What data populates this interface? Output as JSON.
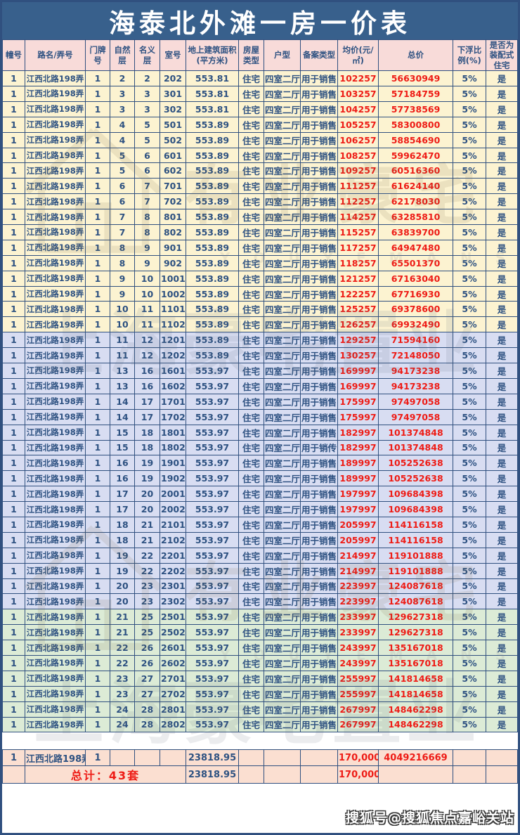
{
  "page": {
    "title": "海泰北外滩一房一价表"
  },
  "colors": {
    "title_bg": "#38608C",
    "border": "#30507F",
    "header_bg": "#F8DBD9",
    "band_yellow": "#FCF3D1",
    "band_blue": "#D8DDF2",
    "band_green": "#DCEBD6",
    "summary_bg": "#FBDFD1",
    "text_navy": "#2D5181",
    "text_red": "#EE1C16"
  },
  "table": {
    "columns": [
      "幢号",
      "路名/弄号",
      "门牌号",
      "自然层",
      "名义层",
      "室号",
      "地上建筑面积(平方米)",
      "房屋类型",
      "户型",
      "备案类型",
      "均价(元/㎡)",
      "总价",
      "下浮比例(%)",
      "是否为装配式住宅"
    ],
    "column_keys": [
      "building",
      "road",
      "door",
      "natural-floor",
      "nominal-floor",
      "room",
      "area",
      "house-type",
      "unit-layout",
      "filing-type",
      "unit-price",
      "total-price",
      "discount",
      "prefab"
    ],
    "bands": {
      "yellow": [
        1,
        17
      ],
      "blue": [
        18,
        35
      ],
      "green": [
        36,
        43
      ]
    },
    "rows": [
      [
        "1",
        "江西北路198弄",
        "1",
        "2",
        "2",
        "202",
        "553.81",
        "住宅",
        "四室二厅",
        "用于销售",
        "102257",
        "56630949",
        "5%",
        "是"
      ],
      [
        "1",
        "江西北路198弄",
        "1",
        "3",
        "3",
        "301",
        "553.81",
        "住宅",
        "四室二厅",
        "用于销售",
        "103257",
        "57184759",
        "5%",
        "是"
      ],
      [
        "1",
        "江西北路198弄",
        "1",
        "3",
        "3",
        "302",
        "553.81",
        "住宅",
        "四室二厅",
        "用于销售",
        "104257",
        "57738569",
        "5%",
        "是"
      ],
      [
        "1",
        "江西北路198弄",
        "1",
        "4",
        "5",
        "501",
        "553.89",
        "住宅",
        "四室二厅",
        "用于销售",
        "105257",
        "58300800",
        "5%",
        "是"
      ],
      [
        "1",
        "江西北路198弄",
        "1",
        "4",
        "5",
        "502",
        "553.89",
        "住宅",
        "四室二厅",
        "用于销售",
        "106257",
        "58854690",
        "5%",
        "是"
      ],
      [
        "1",
        "江西北路198弄",
        "1",
        "5",
        "6",
        "601",
        "553.89",
        "住宅",
        "四室二厅",
        "用于销售",
        "108257",
        "59962470",
        "5%",
        "是"
      ],
      [
        "1",
        "江西北路198弄",
        "1",
        "5",
        "6",
        "602",
        "553.89",
        "住宅",
        "四室二厅",
        "用于销售",
        "109257",
        "60516360",
        "5%",
        "是"
      ],
      [
        "1",
        "江西北路198弄",
        "1",
        "6",
        "7",
        "701",
        "553.89",
        "住宅",
        "四室二厅",
        "用于销售",
        "111257",
        "61624140",
        "5%",
        "是"
      ],
      [
        "1",
        "江西北路198弄",
        "1",
        "6",
        "7",
        "702",
        "553.89",
        "住宅",
        "四室二厅",
        "用于销售",
        "112257",
        "62178030",
        "5%",
        "是"
      ],
      [
        "1",
        "江西北路198弄",
        "1",
        "7",
        "8",
        "801",
        "553.89",
        "住宅",
        "四室二厅",
        "用于销售",
        "114257",
        "63285810",
        "5%",
        "是"
      ],
      [
        "1",
        "江西北路198弄",
        "1",
        "7",
        "8",
        "802",
        "553.89",
        "住宅",
        "四室二厅",
        "用于销售",
        "115257",
        "63839700",
        "5%",
        "是"
      ],
      [
        "1",
        "江西北路198弄",
        "1",
        "8",
        "9",
        "901",
        "553.89",
        "住宅",
        "四室二厅",
        "用于销售",
        "117257",
        "64947480",
        "5%",
        "是"
      ],
      [
        "1",
        "江西北路198弄",
        "1",
        "8",
        "9",
        "902",
        "553.89",
        "住宅",
        "四室二厅",
        "用于销售",
        "118257",
        "65501370",
        "5%",
        "是"
      ],
      [
        "1",
        "江西北路198弄",
        "1",
        "9",
        "10",
        "1001",
        "553.89",
        "住宅",
        "四室二厅",
        "用于销售",
        "121257",
        "67163040",
        "5%",
        "是"
      ],
      [
        "1",
        "江西北路198弄",
        "1",
        "9",
        "10",
        "1002",
        "553.89",
        "住宅",
        "四室二厅",
        "用于销售",
        "122257",
        "67716930",
        "5%",
        "是"
      ],
      [
        "1",
        "江西北路198弄",
        "1",
        "10",
        "11",
        "1101",
        "553.89",
        "住宅",
        "四室二厅",
        "用于销售",
        "125257",
        "69378600",
        "5%",
        "是"
      ],
      [
        "1",
        "江西北路198弄",
        "1",
        "10",
        "11",
        "1102",
        "553.89",
        "住宅",
        "四室二厅",
        "用于销售",
        "126257",
        "69932490",
        "5%",
        "是"
      ],
      [
        "1",
        "江西北路198弄",
        "1",
        "11",
        "12",
        "1201",
        "553.89",
        "住宅",
        "四室二厅",
        "用于销售",
        "129257",
        "71594160",
        "5%",
        "是"
      ],
      [
        "1",
        "江西北路198弄",
        "1",
        "11",
        "12",
        "1202",
        "553.89",
        "住宅",
        "四室二厅",
        "用于销售",
        "130257",
        "72148050",
        "5%",
        "是"
      ],
      [
        "1",
        "江西北路198弄",
        "1",
        "13",
        "16",
        "1601",
        "553.97",
        "住宅",
        "四室二厅",
        "用于销售",
        "169997",
        "94173238",
        "5%",
        "是"
      ],
      [
        "1",
        "江西北路198弄",
        "1",
        "13",
        "16",
        "1602",
        "553.97",
        "住宅",
        "四室二厅",
        "用于销售",
        "169997",
        "94173238",
        "5%",
        "是"
      ],
      [
        "1",
        "江西北路198弄",
        "1",
        "14",
        "17",
        "1701",
        "553.97",
        "住宅",
        "四室二厅",
        "用于销售",
        "175997",
        "97497058",
        "5%",
        "是"
      ],
      [
        "1",
        "江西北路198弄",
        "1",
        "14",
        "17",
        "1702",
        "553.97",
        "住宅",
        "四室二厅",
        "用于销售",
        "175997",
        "97497058",
        "5%",
        "是"
      ],
      [
        "1",
        "江西北路198弄",
        "1",
        "15",
        "18",
        "1801",
        "553.97",
        "住宅",
        "四室二厅",
        "用于销售",
        "182997",
        "101374848",
        "5%",
        "是"
      ],
      [
        "1",
        "江西北路198弄",
        "1",
        "15",
        "18",
        "1802",
        "553.97",
        "住宅",
        "四室二厅",
        "用于销传",
        "182997",
        "101374848",
        "5%",
        "是"
      ],
      [
        "1",
        "江西北路198弄",
        "1",
        "16",
        "19",
        "1901",
        "553.97",
        "住宅",
        "四室二厅",
        "用于销售",
        "189997",
        "105252638",
        "5%",
        "是"
      ],
      [
        "1",
        "江西北路198弄",
        "1",
        "16",
        "19",
        "1902",
        "553.97",
        "住宅",
        "四室二厅",
        "用于销售",
        "189997",
        "105252638",
        "5%",
        "是"
      ],
      [
        "1",
        "江西北路198弄",
        "1",
        "17",
        "20",
        "2001",
        "553.97",
        "住宅",
        "四室二厅",
        "用于销售",
        "197997",
        "109684398",
        "5%",
        "是"
      ],
      [
        "1",
        "江西北路198弄",
        "1",
        "17",
        "20",
        "2002",
        "553.97",
        "住宅",
        "四室二厅",
        "用于销售",
        "197997",
        "109684398",
        "5%",
        "是"
      ],
      [
        "1",
        "江西北路198弄",
        "1",
        "18",
        "21",
        "2101",
        "553.97",
        "住宅",
        "四室二厅",
        "用于销售",
        "205997",
        "114116158",
        "5%",
        "是"
      ],
      [
        "1",
        "江西北路198弄",
        "1",
        "18",
        "21",
        "2102",
        "553.97",
        "住宅",
        "四室二厅",
        "用于销售",
        "205997",
        "114116158",
        "5%",
        "是"
      ],
      [
        "1",
        "江西北路198弄",
        "1",
        "19",
        "22",
        "2201",
        "553.97",
        "住宅",
        "四室二厅",
        "用于销售",
        "214997",
        "119101888",
        "5%",
        "是"
      ],
      [
        "1",
        "江西北路198弄",
        "1",
        "19",
        "22",
        "2202",
        "553.97",
        "住宅",
        "四室二厅",
        "用于销售",
        "214997",
        "119101888",
        "5%",
        "是"
      ],
      [
        "1",
        "江西北路198弄",
        "1",
        "20",
        "23",
        "2301",
        "553.97",
        "住宅",
        "四室二厅",
        "用于销售",
        "223997",
        "124087618",
        "5%",
        "是"
      ],
      [
        "1",
        "江西北路198弄",
        "1",
        "20",
        "23",
        "2302",
        "553.97",
        "住宅",
        "四室二厅",
        "用于销售",
        "223997",
        "124087618",
        "5%",
        "是"
      ],
      [
        "1",
        "江西北路198弄",
        "1",
        "21",
        "25",
        "2501",
        "553.97",
        "住宅",
        "四室二厅",
        "用于销售",
        "233997",
        "129627318",
        "5%",
        "是"
      ],
      [
        "1",
        "江西北路198弄",
        "1",
        "21",
        "25",
        "2502",
        "553.97",
        "住宅",
        "四室二厅",
        "用于销售",
        "233997",
        "129627318",
        "5%",
        "是"
      ],
      [
        "1",
        "江西北路198弄",
        "1",
        "22",
        "26",
        "2601",
        "553.97",
        "住宅",
        "四室二厅",
        "用于销售",
        "243997",
        "135167018",
        "5%",
        "是"
      ],
      [
        "1",
        "江西北路198弄",
        "1",
        "22",
        "26",
        "2602",
        "553.97",
        "住宅",
        "四室二厅",
        "用于销售",
        "243997",
        "135167018",
        "5%",
        "是"
      ],
      [
        "1",
        "江西北路198弄",
        "1",
        "23",
        "27",
        "2701",
        "553.97",
        "住宅",
        "四室二厅",
        "用于销售",
        "255997",
        "141814658",
        "5%",
        "是"
      ],
      [
        "1",
        "江西北路198弄",
        "1",
        "23",
        "27",
        "2702",
        "553.97",
        "住宅",
        "四室二厅",
        "用于销售",
        "255997",
        "141814658",
        "5%",
        "是"
      ],
      [
        "1",
        "江西北路198弄",
        "1",
        "24",
        "28",
        "2801",
        "553.97",
        "住宅",
        "四室二厅",
        "用于销售",
        "267997",
        "148462298",
        "5%",
        "是"
      ],
      [
        "1",
        "江西北路198弄",
        "1",
        "24",
        "28",
        "2802",
        "553.97",
        "住宅",
        "四室二厅",
        "用于销售",
        "267997",
        "148462298",
        "5%",
        "是"
      ]
    ],
    "subtotal_row": {
      "building": "1",
      "road": "江西北路198弄",
      "door": "1",
      "area": "23818.95",
      "unit_price": "170,000",
      "total_price": "4049216669"
    },
    "total_row": {
      "label": "总计：43套",
      "area": "23818.95",
      "unit_price": "170,000",
      "total_price": ""
    }
  },
  "watermarks": {
    "brand_cn": "有业豪宅",
    "brand_en": "Y O U Y E   M A N S I O N",
    "diagonal_text": "上海豪宅置业",
    "sohu_badge": "搜狐号@搜狐焦点嘉峪关站"
  }
}
